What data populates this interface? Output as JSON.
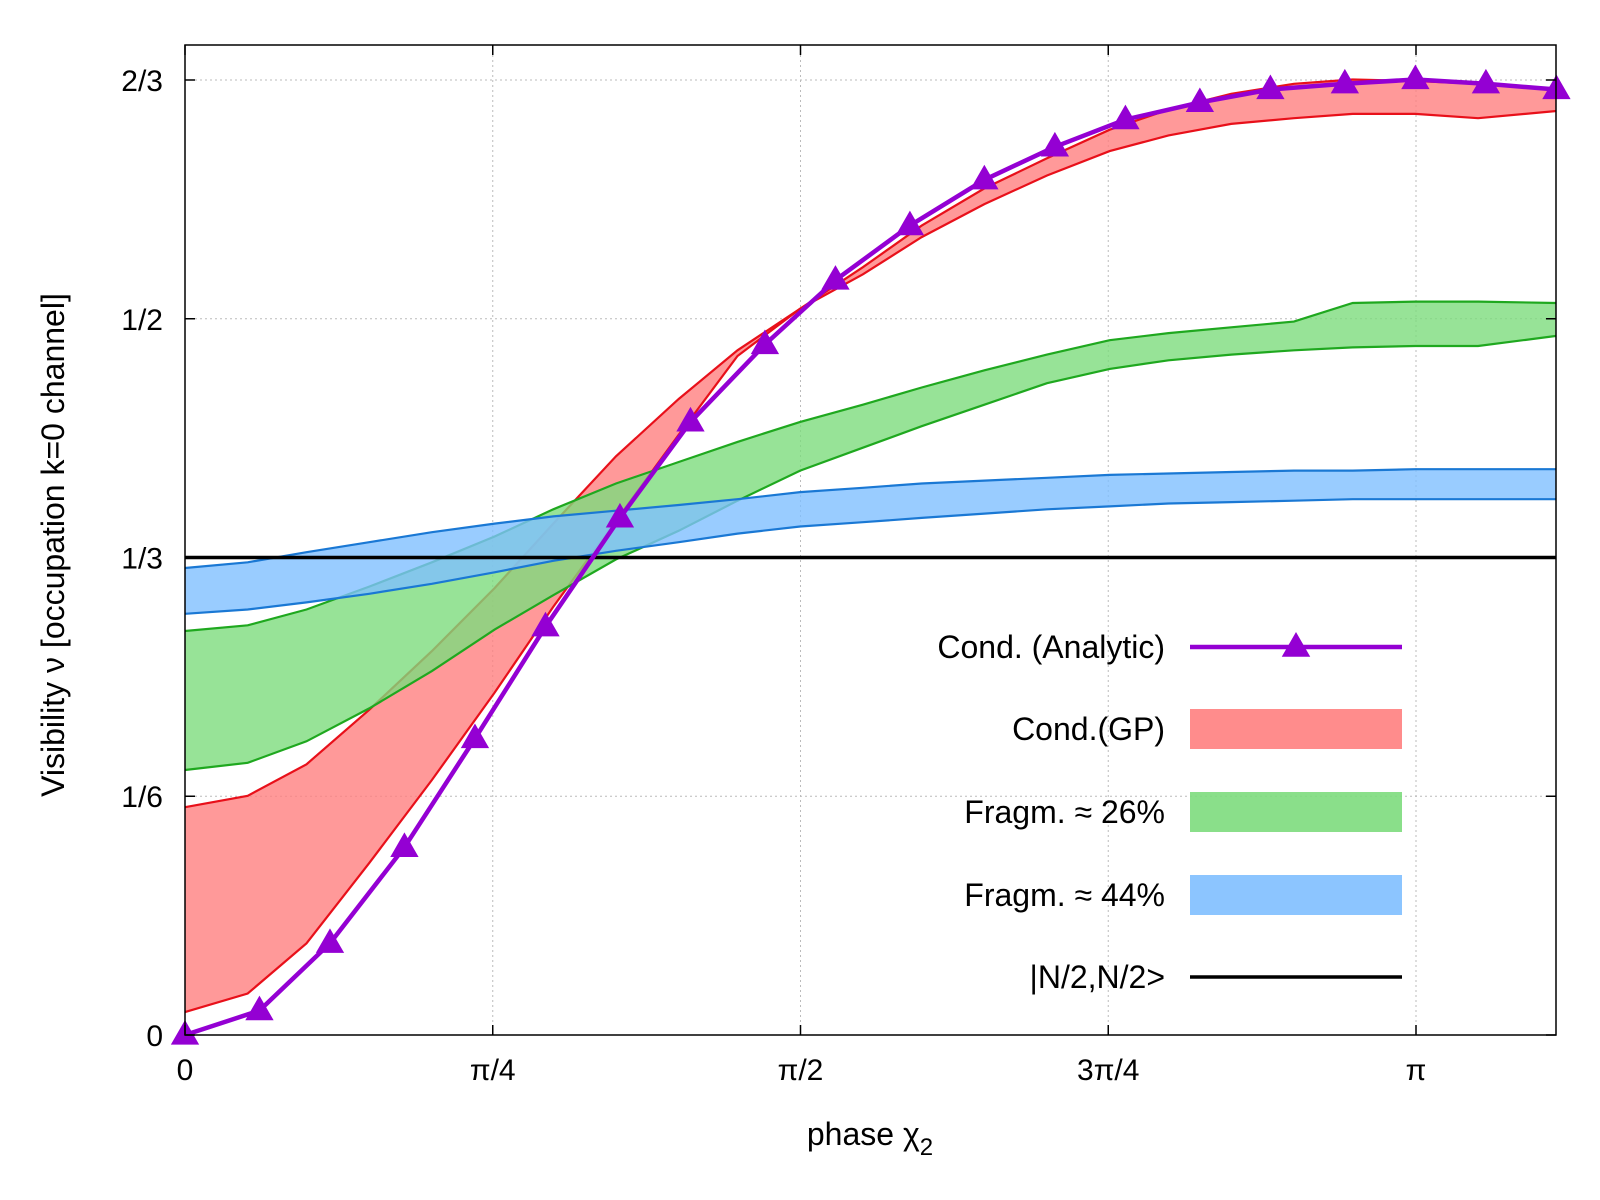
{
  "chart_data": {
    "type": "line",
    "title": "",
    "xlabel": "phase χ",
    "xlabel_subscript": "2",
    "ylabel": "Visibility ν [occupation k=0 channel]",
    "xlim": [
      0,
      3.5
    ],
    "ylim": [
      0,
      0.6667
    ],
    "grid": true,
    "x_ticks": [
      {
        "value": 0,
        "label": "0"
      },
      {
        "value": 0.7854,
        "label": "π/4"
      },
      {
        "value": 1.5708,
        "label": "π/2"
      },
      {
        "value": 2.3562,
        "label": "3π/4"
      },
      {
        "value": 3.1416,
        "label": "π"
      }
    ],
    "y_ticks": [
      {
        "value": 0,
        "label": "0"
      },
      {
        "value": 0.16667,
        "label": "1/6"
      },
      {
        "value": 0.33333,
        "label": "1/3"
      },
      {
        "value": 0.5,
        "label": "1/2"
      },
      {
        "value": 0.66667,
        "label": "2/3"
      }
    ],
    "legend_position": "right",
    "series": [
      {
        "name": "Cond. (Analytic)",
        "kind": "line-markers",
        "color": "#9400d3",
        "x": [
          0,
          0.19,
          0.37,
          0.56,
          0.74,
          0.92,
          1.11,
          1.29,
          1.48,
          1.66,
          1.85,
          2.04,
          2.22,
          2.4,
          2.59,
          2.77,
          2.96,
          3.14,
          3.32,
          3.5
        ],
        "y": [
          0.0,
          0.017,
          0.064,
          0.131,
          0.207,
          0.285,
          0.361,
          0.428,
          0.482,
          0.527,
          0.565,
          0.597,
          0.62,
          0.639,
          0.651,
          0.66,
          0.664,
          0.667,
          0.664,
          0.66
        ]
      },
      {
        "name": "Cond.(GP)",
        "kind": "band",
        "color": "#ff7f7f",
        "edge": "#e8101a",
        "x": [
          0,
          0.16,
          0.31,
          0.47,
          0.63,
          0.79,
          0.94,
          1.1,
          1.26,
          1.41,
          1.57,
          1.73,
          1.88,
          2.04,
          2.2,
          2.36,
          2.51,
          2.67,
          2.83,
          2.98,
          3.14,
          3.3,
          3.5
        ],
        "upper": [
          0.159,
          0.167,
          0.189,
          0.227,
          0.268,
          0.312,
          0.357,
          0.404,
          0.444,
          0.478,
          0.507,
          0.536,
          0.565,
          0.591,
          0.612,
          0.632,
          0.646,
          0.657,
          0.664,
          0.667,
          0.666,
          0.664,
          0.66
        ],
        "lower": [
          0.016,
          0.029,
          0.064,
          0.12,
          0.178,
          0.239,
          0.299,
          0.359,
          0.419,
          0.474,
          0.507,
          0.531,
          0.557,
          0.58,
          0.6,
          0.617,
          0.628,
          0.636,
          0.64,
          0.643,
          0.643,
          0.64,
          0.645
        ]
      },
      {
        "name": "Fragm. ≈ 26%",
        "kind": "band",
        "color": "#7ddc7d",
        "edge": "#1fa81f",
        "x": [
          0,
          0.16,
          0.31,
          0.47,
          0.63,
          0.79,
          0.94,
          1.1,
          1.26,
          1.41,
          1.57,
          1.73,
          1.88,
          2.04,
          2.2,
          2.36,
          2.51,
          2.67,
          2.83,
          2.98,
          3.14,
          3.3,
          3.5
        ],
        "upper": [
          0.282,
          0.286,
          0.297,
          0.313,
          0.33,
          0.348,
          0.367,
          0.385,
          0.4,
          0.414,
          0.428,
          0.44,
          0.452,
          0.464,
          0.475,
          0.485,
          0.49,
          0.494,
          0.498,
          0.511,
          0.512,
          0.512,
          0.511
        ],
        "lower": [
          0.185,
          0.19,
          0.205,
          0.228,
          0.254,
          0.283,
          0.307,
          0.332,
          0.352,
          0.373,
          0.394,
          0.41,
          0.425,
          0.44,
          0.455,
          0.465,
          0.471,
          0.475,
          0.478,
          0.48,
          0.481,
          0.481,
          0.488
        ]
      },
      {
        "name": "Fragm. ≈ 44%",
        "kind": "band",
        "color": "#7fbfff",
        "edge": "#1a78d4",
        "x": [
          0,
          0.16,
          0.31,
          0.47,
          0.63,
          0.79,
          0.94,
          1.1,
          1.26,
          1.41,
          1.57,
          1.73,
          1.88,
          2.04,
          2.2,
          2.36,
          2.51,
          2.67,
          2.83,
          2.98,
          3.14,
          3.3,
          3.5
        ],
        "upper": [
          0.326,
          0.33,
          0.337,
          0.344,
          0.351,
          0.357,
          0.362,
          0.366,
          0.37,
          0.374,
          0.379,
          0.382,
          0.385,
          0.387,
          0.389,
          0.391,
          0.392,
          0.393,
          0.394,
          0.394,
          0.395,
          0.395,
          0.395
        ],
        "lower": [
          0.294,
          0.297,
          0.302,
          0.308,
          0.315,
          0.323,
          0.331,
          0.338,
          0.344,
          0.35,
          0.355,
          0.358,
          0.361,
          0.364,
          0.367,
          0.369,
          0.371,
          0.372,
          0.373,
          0.374,
          0.374,
          0.374,
          0.374
        ]
      },
      {
        "name": "|N/2,N/2>",
        "kind": "hline",
        "color": "#000000",
        "y": 0.3333
      }
    ]
  }
}
